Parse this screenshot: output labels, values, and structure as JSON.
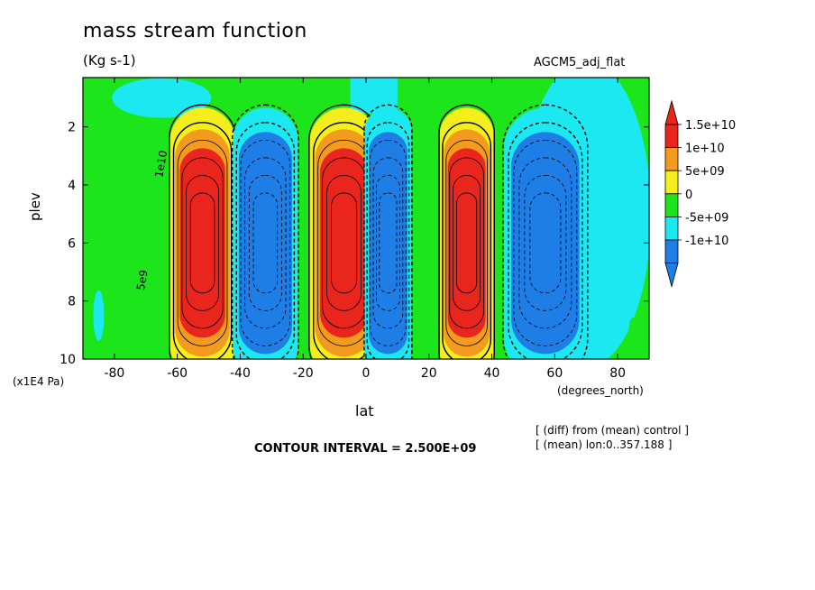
{
  "chart_data": {
    "type": "heatmap",
    "title": "mass stream function",
    "units": "(Kg s-1)",
    "run_label": "AGCM5_adj_flat",
    "xlabel": "lat",
    "xunit": "(degrees_north)",
    "ylabel": "plev",
    "yunit": "(x1E4 Pa)",
    "xlim": [
      -90,
      90
    ],
    "ylim": [
      10,
      0.3
    ],
    "x_ticks": [
      "-80",
      "-60",
      "-40",
      "-20",
      "0",
      "20",
      "40",
      "60",
      "80"
    ],
    "x_tick_values": [
      -80,
      -60,
      -40,
      -20,
      0,
      20,
      40,
      60,
      80
    ],
    "y_ticks": [
      "2",
      "4",
      "6",
      "8",
      "10"
    ],
    "y_tick_values": [
      2,
      4,
      6,
      8,
      10
    ],
    "contour_interval_text": "CONTOUR INTERVAL = 2.500E+09",
    "notes": [
      "[ (diff) from (mean) control ]",
      "[ (mean) lon:0..357.188 ]"
    ],
    "contour_labels": [
      "1e10",
      "5e9",
      "1e10",
      "5e9"
    ],
    "colorbar": {
      "labels": [
        "1.5e+10",
        "1e+10",
        "5e+09",
        "0",
        "-5e+09",
        "-1e+10"
      ],
      "colors": [
        "#e8261d",
        "#f39b1e",
        "#f5ee1d",
        "#1ce51c",
        "#1ce8f2",
        "#1f7de6"
      ]
    },
    "cells": [
      {
        "lat": -52,
        "plev": 6.0,
        "value": 15000000000.0,
        "sign": "positive"
      },
      {
        "lat": -32,
        "plev": 6.0,
        "value": -12000000000.0,
        "sign": "negative"
      },
      {
        "lat": -7,
        "plev": 6.0,
        "value": 16000000000.0,
        "sign": "positive"
      },
      {
        "lat": 7,
        "plev": 6.0,
        "value": -13000000000.0,
        "sign": "negative"
      },
      {
        "lat": 32,
        "plev": 6.0,
        "value": 16000000000.0,
        "sign": "positive"
      },
      {
        "lat": 57,
        "plev": 6.0,
        "value": -12000000000.0,
        "sign": "negative"
      }
    ]
  }
}
